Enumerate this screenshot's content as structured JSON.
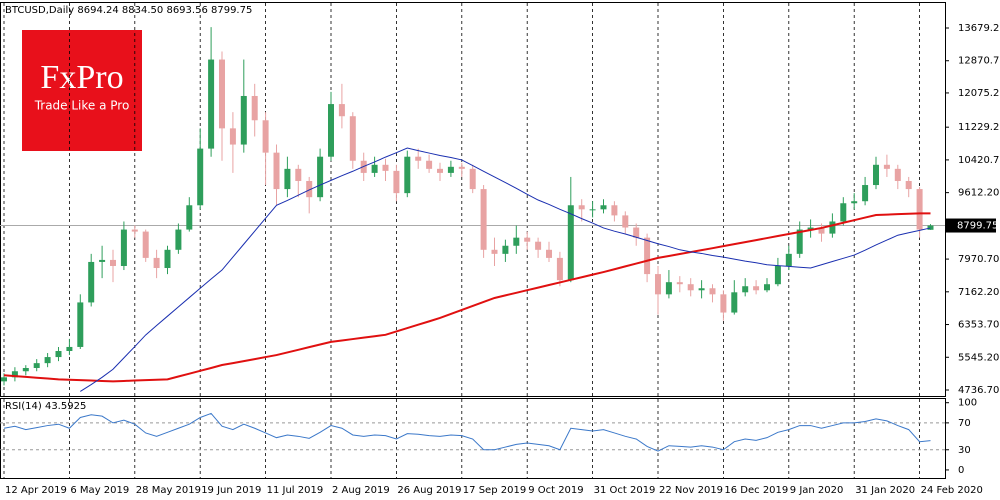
{
  "chart_data": [
    {
      "type": "candlestick",
      "title": "BTCUSD,Daily  8694.24 8834.50 8693.56 8799.75",
      "logo": {
        "name": "FxPro",
        "tagline": "Trade Like a Pro"
      },
      "categories": [
        "12 Apr 2019",
        null,
        null,
        null,
        null,
        null,
        "6 May 2019",
        null,
        null,
        null,
        null,
        null,
        "28 May 2019",
        null,
        null,
        null,
        null,
        null,
        "19 Jun 2019",
        null,
        null,
        null,
        null,
        null,
        "11 Jul 2019",
        null,
        null,
        null,
        null,
        null,
        "2 Aug 2019",
        null,
        null,
        null,
        null,
        null,
        "26 Aug 2019",
        null,
        null,
        null,
        null,
        null,
        "17 Sep 2019",
        null,
        null,
        null,
        null,
        null,
        "9 Oct 2019",
        null,
        null,
        null,
        null,
        null,
        "31 Oct 2019",
        null,
        null,
        null,
        null,
        null,
        "22 Nov 2019",
        null,
        null,
        null,
        null,
        null,
        "16 Dec 2019",
        null,
        null,
        null,
        null,
        null,
        "9 Jan 2020",
        null,
        null,
        null,
        null,
        null,
        "31 Jan 2020",
        null,
        null,
        null,
        null,
        null,
        "24 Feb 2020",
        null
      ],
      "open": [
        4950,
        5050,
        5200,
        5280,
        5400,
        5550,
        5700,
        5800,
        6900,
        7900,
        7950,
        7800,
        8700,
        8650,
        8000,
        7750,
        8200,
        8700,
        9300,
        10700,
        12900,
        11200,
        10800,
        12000,
        11400,
        10600,
        9700,
        10200,
        9900,
        9500,
        10500,
        11800,
        11500,
        10400,
        10100,
        10300,
        10150,
        9600,
        10500,
        10400,
        10200,
        10100,
        10250,
        10200,
        9700,
        8200,
        8100,
        8300,
        8500,
        8400,
        8200,
        8000,
        7450,
        9300,
        9200,
        9200,
        9300,
        9050,
        8750,
        8500,
        7600,
        7100,
        7400,
        7350,
        7200,
        7250,
        7100,
        6650,
        7150,
        7300,
        7200,
        7350,
        7800,
        8100,
        8700,
        8750,
        8600,
        8900,
        9350,
        9400,
        9800,
        10300,
        10200,
        9900,
        9700,
        8694.24
      ],
      "high": [
        5150,
        5300,
        5350,
        5500,
        5650,
        5800,
        6000,
        7100,
        8100,
        8300,
        8200,
        8900,
        8800,
        8700,
        8200,
        8300,
        8850,
        9500,
        11200,
        13700,
        13100,
        11600,
        12900,
        12300,
        11600,
        10800,
        10500,
        10300,
        10000,
        10700,
        12100,
        12300,
        11600,
        10600,
        10500,
        10450,
        10300,
        10650,
        10700,
        10550,
        10350,
        10400,
        10350,
        10300,
        9800,
        8500,
        8450,
        8800,
        8650,
        8500,
        8400,
        8150,
        10000,
        9450,
        9400,
        9450,
        9400,
        9150,
        8850,
        8600,
        7800,
        7700,
        7550,
        7500,
        7450,
        7350,
        7200,
        7450,
        7500,
        7450,
        7500,
        8000,
        8300,
        8900,
        8950,
        8850,
        9100,
        9500,
        9600,
        10000,
        10500,
        10550,
        10300,
        10000,
        9750,
        8834.5
      ],
      "low": [
        4850,
        4950,
        5100,
        5200,
        5300,
        5450,
        5600,
        5750,
        6800,
        7500,
        7400,
        7700,
        8500,
        7900,
        7500,
        7600,
        8100,
        8650,
        9200,
        10500,
        10400,
        10100,
        10600,
        11000,
        9800,
        9300,
        9500,
        9500,
        9100,
        9400,
        10400,
        11200,
        10200,
        9900,
        10000,
        9900,
        9400,
        9500,
        10200,
        10100,
        9900,
        10000,
        10000,
        9600,
        8000,
        7800,
        7900,
        8100,
        8200,
        8000,
        7900,
        7300,
        7400,
        8900,
        9000,
        9100,
        8900,
        8600,
        8300,
        7400,
        6600,
        7000,
        7150,
        7050,
        7000,
        6900,
        6450,
        6600,
        7050,
        7100,
        7150,
        7300,
        7700,
        8000,
        8500,
        8400,
        8500,
        8800,
        9200,
        9300,
        9700,
        10000,
        9700,
        9500,
        8500,
        8693.56
      ],
      "close": [
        5050,
        5200,
        5280,
        5400,
        5550,
        5700,
        5800,
        6900,
        7900,
        7950,
        7800,
        8700,
        8650,
        8000,
        7750,
        8200,
        8700,
        9300,
        10700,
        12900,
        11200,
        10800,
        12000,
        11400,
        10600,
        9700,
        10200,
        9900,
        9500,
        10500,
        11800,
        11500,
        10400,
        10100,
        10300,
        10150,
        9600,
        10500,
        10400,
        10200,
        10100,
        10250,
        10200,
        9700,
        8200,
        8100,
        8300,
        8500,
        8400,
        8200,
        8000,
        7450,
        9300,
        9200,
        9200,
        9300,
        9050,
        8750,
        8500,
        7600,
        7100,
        7400,
        7350,
        7200,
        7250,
        7100,
        6650,
        7150,
        7300,
        7200,
        7350,
        7800,
        8100,
        8700,
        8750,
        8600,
        8900,
        9350,
        9400,
        9800,
        10300,
        10200,
        9900,
        9700,
        8700,
        8799.75
      ],
      "up_color": "#2e9e5b",
      "down_color": "#e8a3a3",
      "series": [
        {
          "color": "#e01010",
          "values": [
            5100,
            5080,
            5060,
            5040,
            5020,
            5000,
            4990,
            4980,
            4970,
            4960,
            4950,
            4960,
            4970,
            4980,
            4990,
            5000,
            5070,
            5140,
            5210,
            5280,
            5354,
            5400,
            5450,
            5500,
            5550,
            5600,
            5665,
            5730,
            5795,
            5860,
            5925,
            5960,
            5995,
            6030,
            6065,
            6100,
            6183,
            6266,
            6349,
            6432,
            6516,
            6615,
            6714,
            6813,
            6912,
            7010,
            7074,
            7138,
            7202,
            7266,
            7330,
            7394,
            7458,
            7522,
            7586,
            7650,
            7720,
            7790,
            7860,
            7930,
            8000,
            8048,
            8096,
            8144,
            8192,
            8240,
            8290,
            8340,
            8390,
            8440,
            8490,
            8540,
            8590,
            8640,
            8690,
            8740,
            8804,
            8868,
            8932,
            8996,
            9060,
            9070,
            9080,
            9090,
            9100,
            9100
          ]
        },
        {
          "color": "#1a2fb0",
          "values": [
            null,
            null,
            null,
            null,
            null,
            null,
            null,
            4700,
            4870,
            5050,
            5250,
            5530,
            5810,
            6096,
            6330,
            6560,
            6790,
            7020,
            7250,
            7480,
            7700,
            8020,
            8340,
            8660,
            8980,
            9300,
            9420,
            9550,
            9680,
            9800,
            9915,
            10030,
            10140,
            10260,
            10370,
            10490,
            10600,
            10715,
            10650,
            10590,
            10530,
            10480,
            10420,
            10280,
            10140,
            10000,
            9860,
            9720,
            9570,
            9430,
            9320,
            9200,
            9090,
            8970,
            8860,
            8740,
            8660,
            8590,
            8510,
            8430,
            8350,
            8280,
            8200,
            8150,
            8110,
            8060,
            8020,
            7970,
            7920,
            7880,
            7830,
            7810,
            7790,
            7770,
            7750,
            7830,
            7910,
            7990,
            8070,
            8190,
            8320,
            8440,
            8560,
            8620,
            8680,
            8740
          ]
        }
      ],
      "ylim": [
        4613,
        14297
      ],
      "yticks": [
        {
          "value": 13679.2,
          "label": "13679.20"
        },
        {
          "value": 12870.7,
          "label": "12870.70"
        },
        {
          "value": 12075.2,
          "label": "12075.20"
        },
        {
          "value": 11229.2,
          "label": "11229.20"
        },
        {
          "value": 10420.7,
          "label": "10420.70"
        },
        {
          "value": 9612.2,
          "label": "9612.20"
        },
        {
          "value": 7970.7,
          "label": "7970.70"
        },
        {
          "value": 7162.2,
          "label": "7162.20"
        },
        {
          "value": 6353.7,
          "label": "6353.70"
        },
        {
          "value": 5545.2,
          "label": "5545.20"
        },
        {
          "value": 4736.7,
          "label": "4736.70"
        }
      ]
    },
    {
      "type": "line",
      "title": "RSI(14) 43.5925",
      "series": [
        {
          "color": "#3b78c9",
          "values": [
            62,
            65,
            60,
            63,
            66,
            68,
            62,
            78,
            82,
            80,
            70,
            74,
            68,
            55,
            50,
            56,
            62,
            68,
            78,
            84,
            65,
            60,
            68,
            62,
            55,
            48,
            52,
            50,
            47,
            56,
            66,
            62,
            52,
            50,
            52,
            51,
            46,
            54,
            53,
            51,
            50,
            52,
            51,
            46,
            30,
            30,
            34,
            38,
            40,
            38,
            36,
            30,
            62,
            60,
            58,
            60,
            55,
            50,
            46,
            35,
            28,
            36,
            35,
            34,
            36,
            34,
            30,
            42,
            46,
            44,
            48,
            56,
            60,
            66,
            66,
            62,
            66,
            70,
            70,
            72,
            76,
            73,
            66,
            60,
            42,
            43.5925
          ]
        }
      ],
      "ylim": [
        -12,
        107
      ],
      "yticks": [
        100,
        70,
        30,
        0
      ],
      "levels": [
        70,
        30
      ]
    }
  ]
}
